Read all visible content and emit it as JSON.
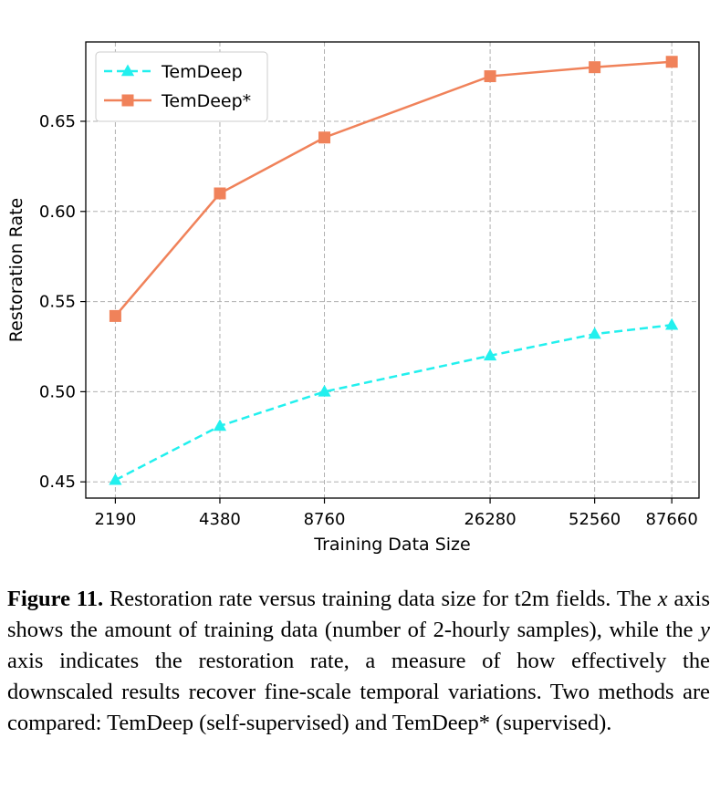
{
  "chart_data": {
    "type": "line",
    "xlabel": "Training Data Size",
    "ylabel": "Restoration Rate",
    "x": [
      2190,
      4380,
      8760,
      26280,
      52560,
      87660
    ],
    "x_tick_labels": [
      "2190",
      "4380",
      "8760",
      "26280",
      "52560",
      "87660"
    ],
    "x_scale": "log",
    "xlim": [
      1800,
      105000
    ],
    "ylim": [
      0.441,
      0.694
    ],
    "y_ticks": [
      0.45,
      0.5,
      0.55,
      0.6,
      0.65
    ],
    "y_tick_labels": [
      "0.45",
      "0.50",
      "0.55",
      "0.60",
      "0.65"
    ],
    "grid": true,
    "legend_position": "top-left",
    "series": [
      {
        "name": "TemDeep",
        "values": [
          0.451,
          0.481,
          0.5,
          0.52,
          0.532,
          0.537
        ],
        "color": "#22f0ee",
        "marker": "triangle",
        "line_style": "dashed"
      },
      {
        "name": "TemDeep*",
        "values": [
          0.542,
          0.61,
          0.641,
          0.675,
          0.68,
          0.683
        ],
        "color": "#f0825a",
        "marker": "square",
        "line_style": "solid"
      }
    ]
  },
  "caption": {
    "label": "Figure 11.",
    "text_1": " Restoration rate versus training data size for t2m fields. The ",
    "x_var": "x",
    "text_2": " axis shows the amount of training data (number of 2-hourly samples), while the ",
    "y_var": "y",
    "text_3": " axis indicates the restoration rate, a measure of how effectively the downscaled results recover fine-scale temporal variations. Two methods are compared: TemDeep (self-supervised) and TemDeep* (supervised)."
  }
}
